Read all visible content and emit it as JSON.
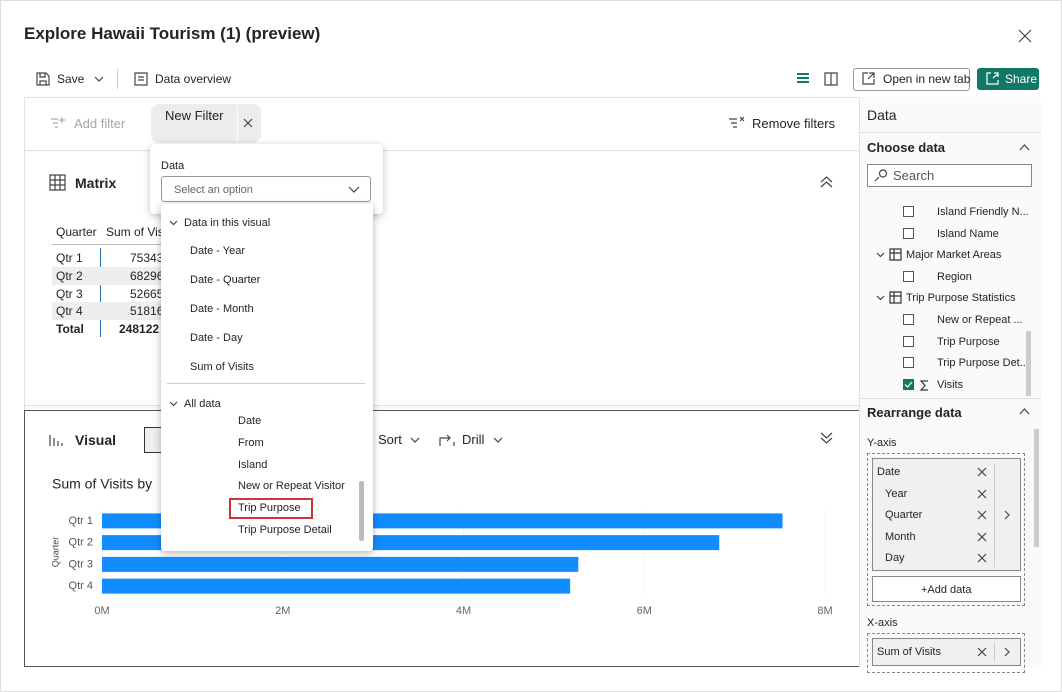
{
  "header": {
    "title": "Explore Hawaii Tourism (1) (preview)"
  },
  "toolbar": {
    "save": "Save",
    "data_overview": "Data overview",
    "open_new_tab": "Open in new tab",
    "share": "Share"
  },
  "filter_bar": {
    "add_filter": "Add filter",
    "new_filter": "New Filter",
    "remove_filters": "Remove filters"
  },
  "filter_popup": {
    "label": "Data",
    "placeholder": "Select an option",
    "groups": [
      {
        "name": "Data in this visual",
        "items": [
          "Date - Year",
          "Date - Quarter",
          "Date - Month",
          "Date - Day",
          "Sum of Visits"
        ]
      },
      {
        "name": "All data",
        "items": [
          "Date",
          "From",
          "Island",
          "New or Repeat Visitor",
          "Trip Purpose",
          "Trip Purpose Detail"
        ]
      }
    ]
  },
  "matrix": {
    "title": "Matrix",
    "columns": [
      "Quarter",
      "Sum of Visi"
    ],
    "rows": [
      [
        "Qtr 1",
        "75343"
      ],
      [
        "Qtr 2",
        "68296"
      ],
      [
        "Qtr 3",
        "52665"
      ],
      [
        "Qtr 4",
        "51816"
      ]
    ],
    "total": [
      "Total",
      "248122"
    ]
  },
  "visual": {
    "title": "Visual",
    "sort": "Sort",
    "drill": "Drill"
  },
  "chart_data": {
    "type": "bar",
    "title": "Sum of Visits by",
    "y_label": "Quarter",
    "categories": [
      "Qtr 1",
      "Qtr 2",
      "Qtr 3",
      "Qtr 4"
    ],
    "values": [
      7.53,
      6.83,
      5.27,
      5.18
    ],
    "color": "#118dff",
    "xlim": [
      0,
      8
    ],
    "xticks": [
      {
        "value": 0,
        "label": "0M"
      },
      {
        "value": 2,
        "label": "2M"
      },
      {
        "value": 4,
        "label": "4M"
      },
      {
        "value": 6,
        "label": "6M"
      },
      {
        "value": 8,
        "label": "8M"
      }
    ],
    "grid": true
  },
  "data_pane": {
    "title": "Data",
    "choose_data": "Choose data",
    "search": "Search",
    "fields_above": [
      {
        "label": "Island Friendly N...",
        "checked": false
      },
      {
        "label": "Island Name",
        "checked": false
      }
    ],
    "tables": [
      {
        "name": "Major Market Areas",
        "fields": [
          {
            "label": "Region",
            "checked": false
          }
        ]
      },
      {
        "name": "Trip Purpose Statistics",
        "fields": [
          {
            "label": "New or Repeat ...",
            "checked": false
          },
          {
            "label": "Trip Purpose",
            "checked": false
          },
          {
            "label": "Trip Purpose Det...",
            "checked": false
          },
          {
            "label": "Visits",
            "checked": true
          }
        ]
      }
    ],
    "rearrange": "Rearrange data",
    "y_axis": "Y-axis",
    "y_fields": [
      "Date",
      "Year",
      "Quarter",
      "Month",
      "Day"
    ],
    "add_data": "+Add data",
    "x_axis": "X-axis",
    "x_fields": [
      "Sum of Visits"
    ]
  }
}
